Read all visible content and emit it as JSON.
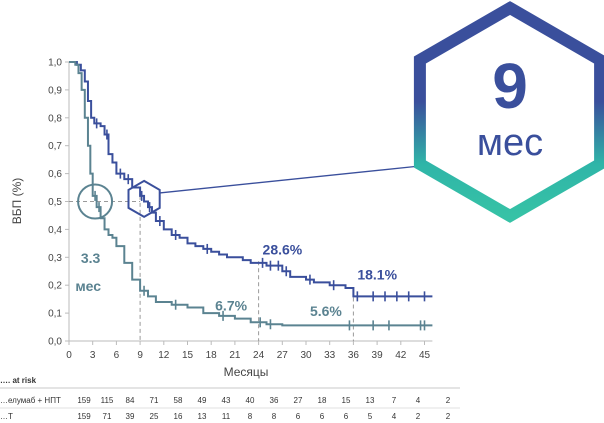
{
  "chart_data": {
    "type": "line",
    "ylabel": "ВБП (%)",
    "xlabel": "Месяцы",
    "xlim": [
      0,
      46
    ],
    "ylim": [
      0,
      1.0
    ],
    "x_ticks": [
      "0",
      "3",
      "6",
      "9",
      "12",
      "15",
      "18",
      "21",
      "24",
      "27",
      "30",
      "33",
      "36",
      "39",
      "42",
      "45"
    ],
    "y_ticks": [
      "0,0",
      "0,1",
      "0,2",
      "0,3",
      "0,4",
      "0,5",
      "0,6",
      "0,7",
      "0,8",
      "0,9",
      "1,0"
    ],
    "colors": {
      "series1": "#3a4f9c",
      "series2": "#5b8391",
      "guide": "#9a9a9a",
      "hex_stroke": "#3a4f9c"
    },
    "series": [
      {
        "steps": [
          [
            0,
            1.0
          ],
          [
            1,
            0.99
          ],
          [
            1.5,
            0.97
          ],
          [
            2,
            0.93
          ],
          [
            2.4,
            0.86
          ],
          [
            2.8,
            0.8
          ],
          [
            3.2,
            0.78
          ],
          [
            4,
            0.77
          ],
          [
            4.5,
            0.74
          ],
          [
            5,
            0.67
          ],
          [
            5.5,
            0.64
          ],
          [
            6,
            0.6
          ],
          [
            7,
            0.58
          ],
          [
            8,
            0.55
          ],
          [
            9,
            0.52
          ],
          [
            9.5,
            0.5
          ],
          [
            10,
            0.48
          ],
          [
            10.5,
            0.46
          ],
          [
            11,
            0.43
          ],
          [
            12,
            0.4
          ],
          [
            13,
            0.38
          ],
          [
            14,
            0.37
          ],
          [
            15,
            0.35
          ],
          [
            16,
            0.34
          ],
          [
            17,
            0.33
          ],
          [
            18,
            0.32
          ],
          [
            19,
            0.31
          ],
          [
            20,
            0.3
          ],
          [
            22,
            0.29
          ],
          [
            23,
            0.28
          ],
          [
            25,
            0.27
          ],
          [
            27,
            0.25
          ],
          [
            28,
            0.23
          ],
          [
            30,
            0.22
          ],
          [
            31,
            0.21
          ],
          [
            33,
            0.2
          ],
          [
            35,
            0.19
          ],
          [
            36,
            0.16
          ],
          [
            46,
            0.16
          ]
        ],
        "censor": [
          3.5,
          4.8,
          6.5,
          7.5,
          9.2,
          10.2,
          11.5,
          13.5,
          17.5,
          24.5,
          25.5,
          26.5,
          27.5,
          30.5,
          33.5,
          36.5,
          38.5,
          40,
          41.5,
          43,
          45
        ]
      },
      {
        "steps": [
          [
            0,
            1.0
          ],
          [
            0.8,
            0.99
          ],
          [
            1.2,
            0.96
          ],
          [
            1.6,
            0.9
          ],
          [
            2,
            0.8
          ],
          [
            2.4,
            0.7
          ],
          [
            2.7,
            0.6
          ],
          [
            3,
            0.52
          ],
          [
            3.5,
            0.48
          ],
          [
            4,
            0.44
          ],
          [
            4.5,
            0.4
          ],
          [
            5,
            0.38
          ],
          [
            5.5,
            0.37
          ],
          [
            6,
            0.34
          ],
          [
            7,
            0.28
          ],
          [
            8,
            0.22
          ],
          [
            9,
            0.18
          ],
          [
            10,
            0.16
          ],
          [
            11,
            0.14
          ],
          [
            13,
            0.13
          ],
          [
            15,
            0.12
          ],
          [
            17,
            0.1
          ],
          [
            19,
            0.09
          ],
          [
            21,
            0.08
          ],
          [
            23,
            0.067
          ],
          [
            25,
            0.06
          ],
          [
            27,
            0.056
          ],
          [
            46,
            0.056
          ]
        ],
        "censor": [
          3.3,
          3.8,
          9.5,
          13.5,
          19.5,
          24.2,
          25.5,
          35.5,
          38.5,
          40.5,
          44.5,
          45
        ]
      }
    ],
    "annotations": [
      {
        "text": "28.6%",
        "x": 24.5,
        "y": 0.31,
        "series": 0
      },
      {
        "text": "18.1%",
        "x": 36.5,
        "y": 0.22,
        "series": 0
      },
      {
        "text": "6.7%",
        "x": 18.5,
        "y": 0.11,
        "series": 1
      },
      {
        "text": "5.6%",
        "x": 30.5,
        "y": 0.09,
        "series": 1
      },
      {
        "text": "3.3",
        "x": 1.5,
        "y": 0.28,
        "series": 1
      },
      {
        "text": "мес",
        "x": 0.8,
        "y": 0.18,
        "series": 1
      }
    ],
    "guides": [
      {
        "x": 9,
        "y": 0.52
      },
      {
        "x": 24,
        "y": 0.286
      },
      {
        "x": 36,
        "y": 0.181
      }
    ],
    "median_marker": {
      "x": 9,
      "y": 0.52
    },
    "median_circle": {
      "x": 3.3,
      "y": 0.5
    },
    "callout": {
      "value": "9",
      "unit": "мес"
    },
    "risk_table": {
      "header": "…. at risk",
      "rows": [
        {
          "label": "…елумаб + НПТ",
          "values": [
            "159",
            "115",
            "84",
            "71",
            "58",
            "49",
            "43",
            "40",
            "36",
            "27",
            "18",
            "15",
            "13",
            "7",
            "4",
            "2"
          ]
        },
        {
          "label": "…Т",
          "values": [
            "159",
            "71",
            "39",
            "25",
            "16",
            "13",
            "11",
            "8",
            "8",
            "6",
            "6",
            "6",
            "5",
            "4",
            "2",
            "2"
          ]
        }
      ]
    }
  }
}
